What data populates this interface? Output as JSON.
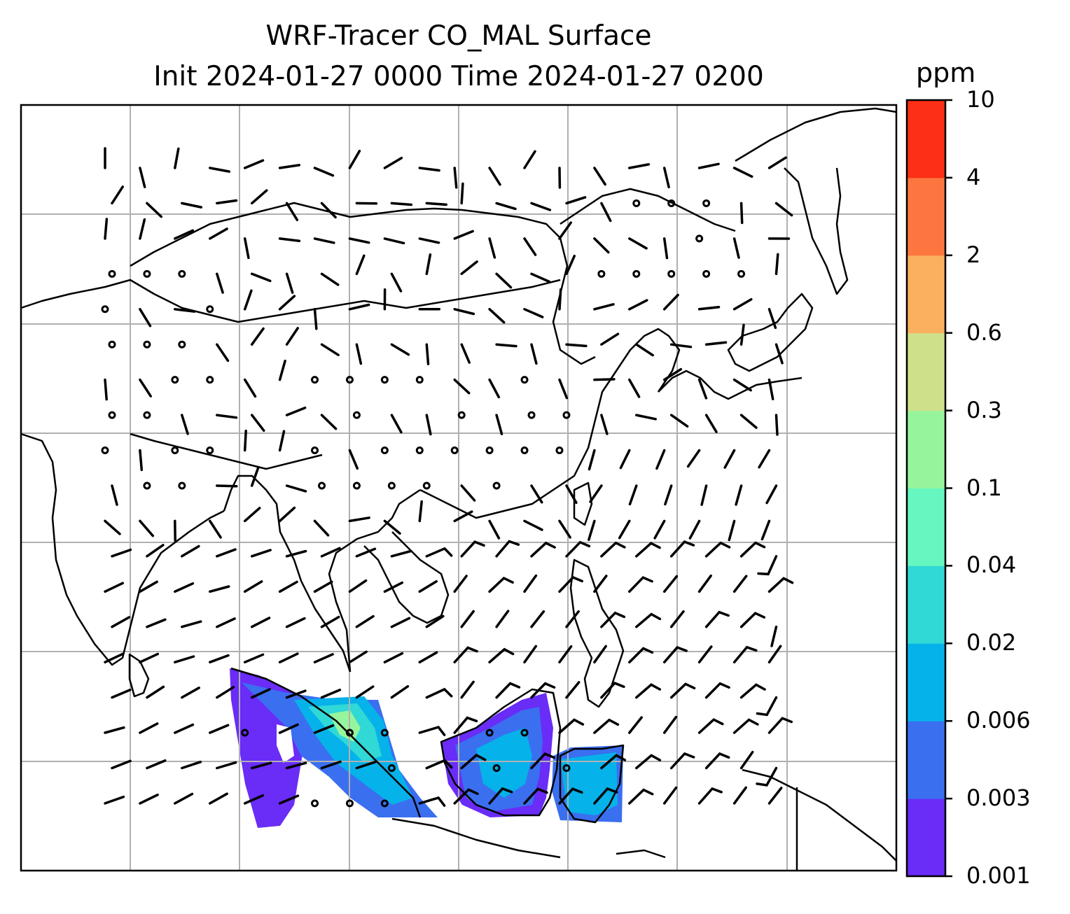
{
  "title": {
    "line1": "WRF-Tracer CO_MAL Surface",
    "line2": "Init 2024-01-27 0000 Time 2024-01-27 0200"
  },
  "colorbar": {
    "unit": "ppm",
    "ticks": [
      "0.001",
      "0.003",
      "0.006",
      "0.02",
      "0.04",
      "0.1",
      "0.3",
      "0.6",
      "2",
      "4",
      "10"
    ],
    "colors": [
      "#6a2cf7",
      "#3a6ff0",
      "#06b2ea",
      "#30d8d6",
      "#66f6bf",
      "#96f59c",
      "#cfe08a",
      "#fbb060",
      "#fd7640",
      "#fd2f16"
    ]
  },
  "map": {
    "field_colors": {
      "low": "#6a2cf7",
      "mid": "#3a6ff0",
      "high": "#06b2ea",
      "peak": "#30d8d6",
      "max": "#96f59c"
    },
    "gridline_color": "#b0b0b0",
    "coast_color": "#000000"
  }
}
